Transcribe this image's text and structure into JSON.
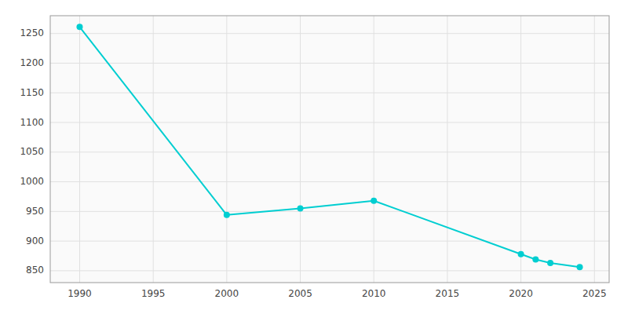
{
  "chart_data": {
    "type": "line",
    "x": [
      1990,
      2000,
      2005,
      2010,
      2020,
      2021,
      2022,
      2024
    ],
    "values": [
      1261,
      944,
      955,
      968,
      878,
      869,
      863,
      856
    ],
    "color": "#00CED1",
    "marker": "circle",
    "xlim": [
      1988,
      2026
    ],
    "ylim": [
      830,
      1280
    ],
    "xticks": [
      1990,
      1995,
      2000,
      2005,
      2010,
      2015,
      2020,
      2025
    ],
    "yticks": [
      850,
      900,
      950,
      1000,
      1050,
      1100,
      1150,
      1200,
      1250
    ],
    "grid": true
  }
}
